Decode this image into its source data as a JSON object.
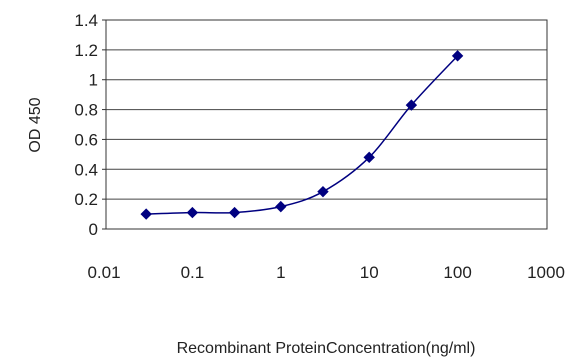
{
  "chart_data": {
    "type": "line",
    "title": "",
    "xlabel": "Recombinant ProteinConcentration(ng/ml)",
    "ylabel": "OD 450",
    "x_scale": "log",
    "xlim": [
      0.01,
      1000
    ],
    "ylim": [
      0,
      1.4
    ],
    "x_ticks": [
      "0.01",
      "0.1",
      "1",
      "10",
      "100",
      "1000"
    ],
    "y_ticks": [
      "0",
      "0.2",
      "0.4",
      "0.6",
      "0.8",
      "1",
      "1.2",
      "1.4"
    ],
    "grid": "horizontal",
    "legend": "none",
    "series": [
      {
        "color": "#000080",
        "marker": "diamond",
        "points": [
          {
            "x": 0.03,
            "y": 0.1
          },
          {
            "x": 0.1,
            "y": 0.11
          },
          {
            "x": 0.3,
            "y": 0.11
          },
          {
            "x": 1,
            "y": 0.15
          },
          {
            "x": 3,
            "y": 0.25
          },
          {
            "x": 10,
            "y": 0.48
          },
          {
            "x": 30,
            "y": 0.83
          },
          {
            "x": 100,
            "y": 1.16
          }
        ]
      }
    ]
  }
}
